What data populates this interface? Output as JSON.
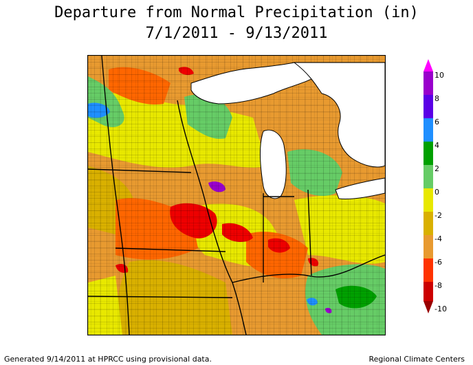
{
  "title": {
    "line1": "Departure from Normal Precipitation (in)",
    "line2": "7/1/2011 - 9/13/2011"
  },
  "legend": {
    "labels": [
      "10",
      "8",
      "6",
      "4",
      "2",
      "0",
      "-2",
      "-4",
      "-6",
      "-8",
      "-10"
    ],
    "colors": [
      "#ff00ff",
      "#9900cc",
      "#1f8fff",
      "#00a000",
      "#66cc66",
      "#e8e800",
      "#d9b000",
      "#e89a30",
      "#ff6600",
      "#ee0000",
      "#990000"
    ]
  },
  "map_colors": {
    "very_dry": "#990000",
    "dry_red": "#ee0000",
    "orange": "#ff6600",
    "light_orange": "#e89a30",
    "tan": "#d9b000",
    "yellow": "#e8e800",
    "light_green": "#66cc66",
    "green": "#00a000",
    "blue": "#1f8fff",
    "purple": "#9900cc",
    "lake": "#ffffff"
  },
  "footer": {
    "left": "Generated 9/14/2011 at HPRCC using provisional data.",
    "right": "Regional Climate Centers"
  }
}
